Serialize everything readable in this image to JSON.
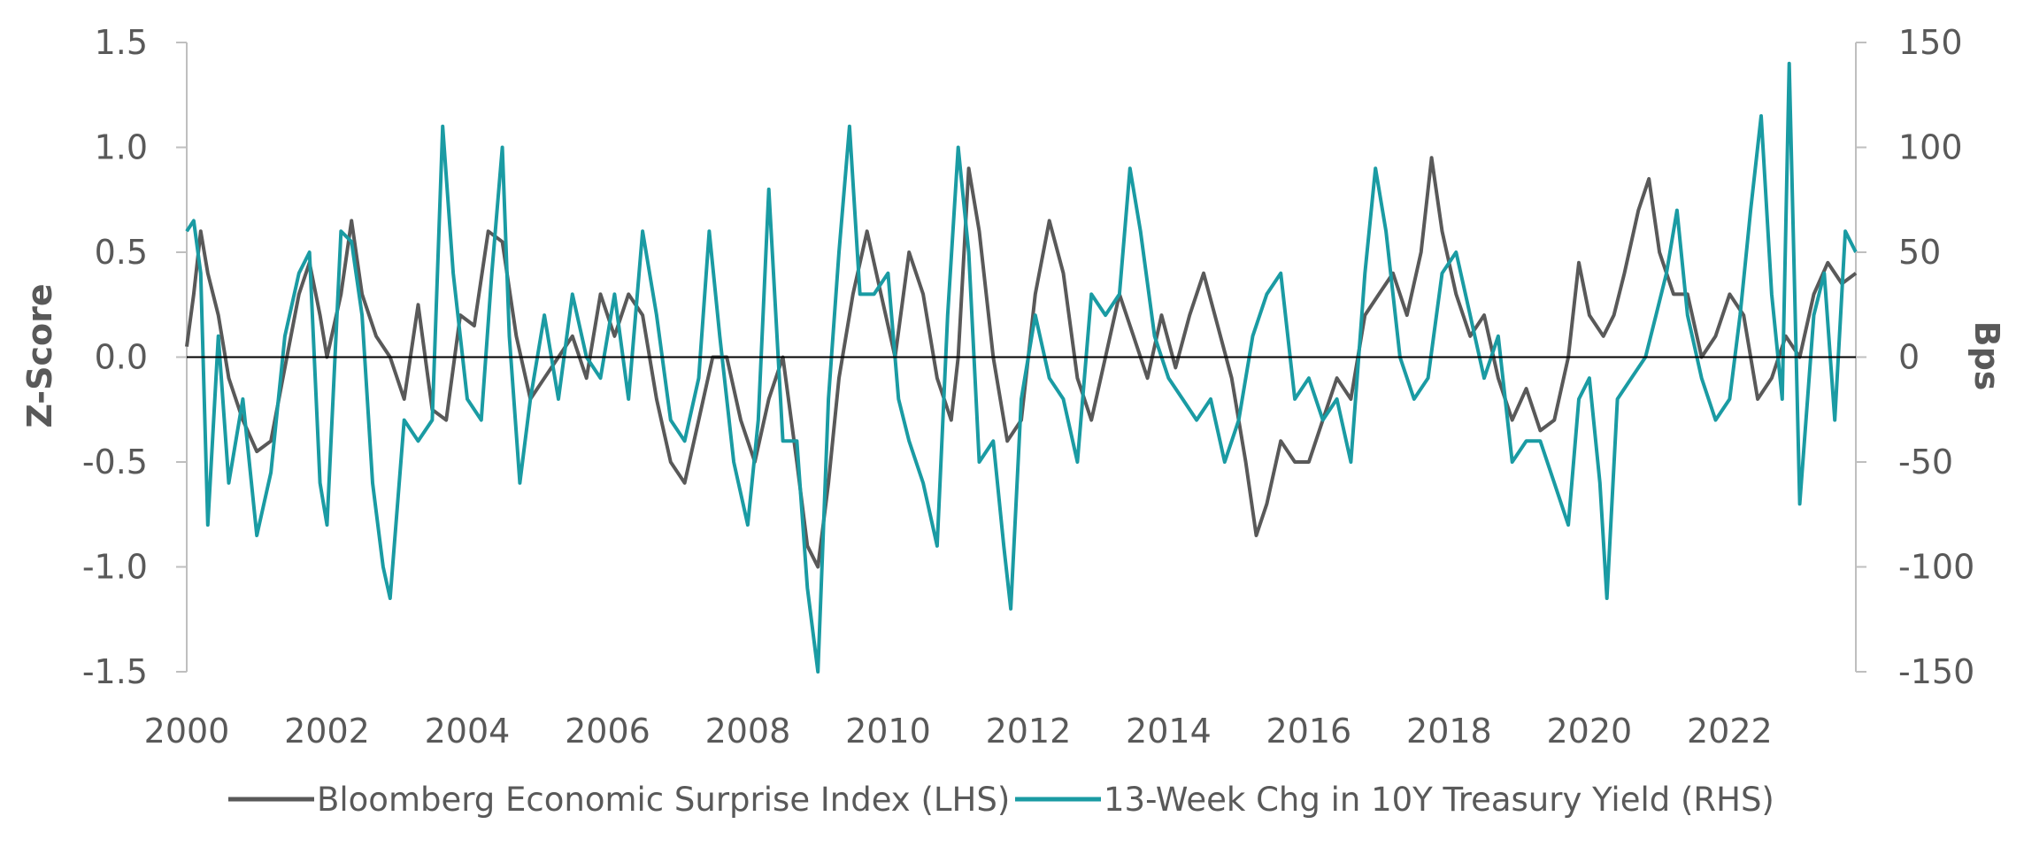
{
  "chart_data": {
    "type": "line",
    "title": "",
    "left_axis": {
      "label": "Z-Score",
      "range": [
        -1.5,
        1.5
      ],
      "ticks": [
        "1.5",
        "1.0",
        "0.5",
        "0.0",
        "-0.5",
        "-1.0",
        "-1.5"
      ]
    },
    "right_axis": {
      "label": "Bps",
      "range": [
        -150,
        150
      ],
      "ticks": [
        "150",
        "100",
        "50",
        "0",
        "-50",
        "-100",
        "-150"
      ]
    },
    "x_axis": {
      "range": [
        2000,
        2023.8
      ],
      "ticks": [
        "2000",
        "2002",
        "2004",
        "2006",
        "2008",
        "2010",
        "2012",
        "2014",
        "2016",
        "2018",
        "2020",
        "2022"
      ]
    },
    "legend_position": "bottom",
    "series": [
      {
        "name": "Bloomberg Economic Surprise Index (LHS)",
        "axis": "left",
        "color": "#595959",
        "points": [
          [
            2000.0,
            0.05
          ],
          [
            2000.1,
            0.3
          ],
          [
            2000.2,
            0.6
          ],
          [
            2000.3,
            0.4
          ],
          [
            2000.45,
            0.2
          ],
          [
            2000.6,
            -0.1
          ],
          [
            2000.8,
            -0.3
          ],
          [
            2001.0,
            -0.45
          ],
          [
            2001.2,
            -0.4
          ],
          [
            2001.4,
            -0.05
          ],
          [
            2001.6,
            0.3
          ],
          [
            2001.75,
            0.45
          ],
          [
            2001.9,
            0.2
          ],
          [
            2002.0,
            0.0
          ],
          [
            2002.2,
            0.3
          ],
          [
            2002.35,
            0.65
          ],
          [
            2002.5,
            0.3
          ],
          [
            2002.7,
            0.1
          ],
          [
            2002.9,
            0.0
          ],
          [
            2003.1,
            -0.2
          ],
          [
            2003.3,
            0.25
          ],
          [
            2003.5,
            -0.25
          ],
          [
            2003.7,
            -0.3
          ],
          [
            2003.9,
            0.2
          ],
          [
            2004.1,
            0.15
          ],
          [
            2004.3,
            0.6
          ],
          [
            2004.5,
            0.55
          ],
          [
            2004.7,
            0.1
          ],
          [
            2004.9,
            -0.2
          ],
          [
            2005.1,
            -0.1
          ],
          [
            2005.3,
            0.0
          ],
          [
            2005.5,
            0.1
          ],
          [
            2005.7,
            -0.1
          ],
          [
            2005.9,
            0.3
          ],
          [
            2006.1,
            0.1
          ],
          [
            2006.3,
            0.3
          ],
          [
            2006.5,
            0.2
          ],
          [
            2006.7,
            -0.2
          ],
          [
            2006.9,
            -0.5
          ],
          [
            2007.1,
            -0.6
          ],
          [
            2007.3,
            -0.3
          ],
          [
            2007.5,
            0.0
          ],
          [
            2007.7,
            0.0
          ],
          [
            2007.9,
            -0.3
          ],
          [
            2008.1,
            -0.5
          ],
          [
            2008.3,
            -0.2
          ],
          [
            2008.5,
            0.0
          ],
          [
            2008.7,
            -0.5
          ],
          [
            2008.85,
            -0.9
          ],
          [
            2009.0,
            -1.0
          ],
          [
            2009.15,
            -0.6
          ],
          [
            2009.3,
            -0.1
          ],
          [
            2009.5,
            0.3
          ],
          [
            2009.7,
            0.6
          ],
          [
            2009.9,
            0.3
          ],
          [
            2010.1,
            0.0
          ],
          [
            2010.3,
            0.5
          ],
          [
            2010.5,
            0.3
          ],
          [
            2010.7,
            -0.1
          ],
          [
            2010.9,
            -0.3
          ],
          [
            2011.0,
            0.0
          ],
          [
            2011.15,
            0.9
          ],
          [
            2011.3,
            0.6
          ],
          [
            2011.5,
            0.0
          ],
          [
            2011.7,
            -0.4
          ],
          [
            2011.9,
            -0.3
          ],
          [
            2012.1,
            0.3
          ],
          [
            2012.3,
            0.65
          ],
          [
            2012.5,
            0.4
          ],
          [
            2012.7,
            -0.1
          ],
          [
            2012.9,
            -0.3
          ],
          [
            2013.1,
            0.0
          ],
          [
            2013.3,
            0.3
          ],
          [
            2013.5,
            0.1
          ],
          [
            2013.7,
            -0.1
          ],
          [
            2013.9,
            0.2
          ],
          [
            2014.1,
            -0.05
          ],
          [
            2014.3,
            0.2
          ],
          [
            2014.5,
            0.4
          ],
          [
            2014.7,
            0.15
          ],
          [
            2014.9,
            -0.1
          ],
          [
            2015.1,
            -0.5
          ],
          [
            2015.25,
            -0.85
          ],
          [
            2015.4,
            -0.7
          ],
          [
            2015.6,
            -0.4
          ],
          [
            2015.8,
            -0.5
          ],
          [
            2016.0,
            -0.5
          ],
          [
            2016.2,
            -0.3
          ],
          [
            2016.4,
            -0.1
          ],
          [
            2016.6,
            -0.2
          ],
          [
            2016.8,
            0.2
          ],
          [
            2017.0,
            0.3
          ],
          [
            2017.2,
            0.4
          ],
          [
            2017.4,
            0.2
          ],
          [
            2017.6,
            0.5
          ],
          [
            2017.75,
            0.95
          ],
          [
            2017.9,
            0.6
          ],
          [
            2018.1,
            0.3
          ],
          [
            2018.3,
            0.1
          ],
          [
            2018.5,
            0.2
          ],
          [
            2018.7,
            -0.1
          ],
          [
            2018.9,
            -0.3
          ],
          [
            2019.1,
            -0.15
          ],
          [
            2019.3,
            -0.35
          ],
          [
            2019.5,
            -0.3
          ],
          [
            2019.7,
            0.0
          ],
          [
            2019.85,
            0.45
          ],
          [
            2020.0,
            0.2
          ],
          [
            2020.2,
            0.1
          ],
          [
            2020.35,
            0.2
          ],
          [
            2020.5,
            0.4
          ],
          [
            2020.7,
            0.7
          ],
          [
            2020.85,
            0.85
          ],
          [
            2021.0,
            0.5
          ],
          [
            2021.2,
            0.3
          ],
          [
            2021.4,
            0.3
          ],
          [
            2021.6,
            0.0
          ],
          [
            2021.8,
            0.1
          ],
          [
            2022.0,
            0.3
          ],
          [
            2022.2,
            0.2
          ],
          [
            2022.4,
            -0.2
          ],
          [
            2022.6,
            -0.1
          ],
          [
            2022.8,
            0.1
          ],
          [
            2023.0,
            0.0
          ],
          [
            2023.2,
            0.3
          ],
          [
            2023.4,
            0.45
          ],
          [
            2023.6,
            0.35
          ],
          [
            2023.8,
            0.4
          ]
        ]
      },
      {
        "name": "13-Week Chg in 10Y Treasury Yield (RHS)",
        "axis": "right",
        "color": "#1a9ba3",
        "points": [
          [
            2000.0,
            60
          ],
          [
            2000.1,
            65
          ],
          [
            2000.2,
            40
          ],
          [
            2000.3,
            -80
          ],
          [
            2000.45,
            10
          ],
          [
            2000.6,
            -60
          ],
          [
            2000.8,
            -20
          ],
          [
            2001.0,
            -85
          ],
          [
            2001.2,
            -55
          ],
          [
            2001.4,
            10
          ],
          [
            2001.6,
            40
          ],
          [
            2001.75,
            50
          ],
          [
            2001.9,
            -60
          ],
          [
            2002.0,
            -80
          ],
          [
            2002.2,
            60
          ],
          [
            2002.35,
            55
          ],
          [
            2002.5,
            20
          ],
          [
            2002.65,
            -60
          ],
          [
            2002.8,
            -100
          ],
          [
            2002.9,
            -115
          ],
          [
            2003.1,
            -30
          ],
          [
            2003.3,
            -40
          ],
          [
            2003.5,
            -30
          ],
          [
            2003.65,
            110
          ],
          [
            2003.8,
            40
          ],
          [
            2004.0,
            -20
          ],
          [
            2004.2,
            -30
          ],
          [
            2004.35,
            40
          ],
          [
            2004.5,
            100
          ],
          [
            2004.6,
            10
          ],
          [
            2004.75,
            -60
          ],
          [
            2004.9,
            -20
          ],
          [
            2005.1,
            20
          ],
          [
            2005.3,
            -20
          ],
          [
            2005.5,
            30
          ],
          [
            2005.7,
            0
          ],
          [
            2005.9,
            -10
          ],
          [
            2006.1,
            30
          ],
          [
            2006.3,
            -20
          ],
          [
            2006.5,
            60
          ],
          [
            2006.7,
            20
          ],
          [
            2006.9,
            -30
          ],
          [
            2007.1,
            -40
          ],
          [
            2007.3,
            -10
          ],
          [
            2007.45,
            60
          ],
          [
            2007.6,
            10
          ],
          [
            2007.8,
            -50
          ],
          [
            2008.0,
            -80
          ],
          [
            2008.15,
            -30
          ],
          [
            2008.3,
            80
          ],
          [
            2008.5,
            -40
          ],
          [
            2008.7,
            -40
          ],
          [
            2008.85,
            -110
          ],
          [
            2009.0,
            -150
          ],
          [
            2009.15,
            -20
          ],
          [
            2009.3,
            50
          ],
          [
            2009.45,
            110
          ],
          [
            2009.6,
            30
          ],
          [
            2009.8,
            30
          ],
          [
            2010.0,
            40
          ],
          [
            2010.15,
            -20
          ],
          [
            2010.3,
            -40
          ],
          [
            2010.5,
            -60
          ],
          [
            2010.7,
            -90
          ],
          [
            2010.85,
            20
          ],
          [
            2011.0,
            100
          ],
          [
            2011.15,
            50
          ],
          [
            2011.3,
            -50
          ],
          [
            2011.5,
            -40
          ],
          [
            2011.65,
            -90
          ],
          [
            2011.75,
            -120
          ],
          [
            2011.9,
            -20
          ],
          [
            2012.1,
            20
          ],
          [
            2012.3,
            -10
          ],
          [
            2012.5,
            -20
          ],
          [
            2012.7,
            -50
          ],
          [
            2012.9,
            30
          ],
          [
            2013.1,
            20
          ],
          [
            2013.3,
            30
          ],
          [
            2013.45,
            90
          ],
          [
            2013.6,
            60
          ],
          [
            2013.8,
            10
          ],
          [
            2014.0,
            -10
          ],
          [
            2014.2,
            -20
          ],
          [
            2014.4,
            -30
          ],
          [
            2014.6,
            -20
          ],
          [
            2014.8,
            -50
          ],
          [
            2015.0,
            -30
          ],
          [
            2015.2,
            10
          ],
          [
            2015.4,
            30
          ],
          [
            2015.6,
            40
          ],
          [
            2015.8,
            -20
          ],
          [
            2016.0,
            -10
          ],
          [
            2016.2,
            -30
          ],
          [
            2016.4,
            -20
          ],
          [
            2016.6,
            -50
          ],
          [
            2016.8,
            40
          ],
          [
            2016.95,
            90
          ],
          [
            2017.1,
            60
          ],
          [
            2017.3,
            0
          ],
          [
            2017.5,
            -20
          ],
          [
            2017.7,
            -10
          ],
          [
            2017.9,
            40
          ],
          [
            2018.1,
            50
          ],
          [
            2018.3,
            20
          ],
          [
            2018.5,
            -10
          ],
          [
            2018.7,
            10
          ],
          [
            2018.9,
            -50
          ],
          [
            2019.1,
            -40
          ],
          [
            2019.3,
            -40
          ],
          [
            2019.5,
            -60
          ],
          [
            2019.7,
            -80
          ],
          [
            2019.85,
            -20
          ],
          [
            2020.0,
            -10
          ],
          [
            2020.15,
            -60
          ],
          [
            2020.25,
            -115
          ],
          [
            2020.4,
            -20
          ],
          [
            2020.6,
            -10
          ],
          [
            2020.8,
            0
          ],
          [
            2020.95,
            20
          ],
          [
            2021.1,
            40
          ],
          [
            2021.25,
            70
          ],
          [
            2021.4,
            20
          ],
          [
            2021.6,
            -10
          ],
          [
            2021.8,
            -30
          ],
          [
            2022.0,
            -20
          ],
          [
            2022.15,
            20
          ],
          [
            2022.3,
            70
          ],
          [
            2022.45,
            115
          ],
          [
            2022.6,
            30
          ],
          [
            2022.75,
            -20
          ],
          [
            2022.85,
            140
          ],
          [
            2023.0,
            -70
          ],
          [
            2023.2,
            20
          ],
          [
            2023.35,
            40
          ],
          [
            2023.5,
            -30
          ],
          [
            2023.65,
            60
          ],
          [
            2023.8,
            50
          ]
        ]
      }
    ]
  }
}
